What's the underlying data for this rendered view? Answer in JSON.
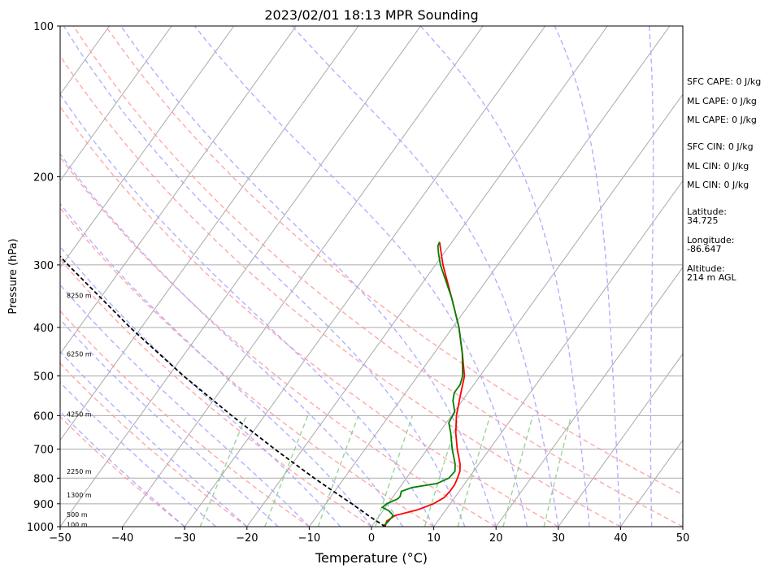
{
  "chart_data": {
    "type": "line",
    "title": "2023/02/01 18:13 MPR Sounding",
    "xlabel": "Temperature (°C)",
    "ylabel": "Pressure (hPa)",
    "xlim": [
      -50,
      50
    ],
    "ylim": [
      1000,
      100
    ],
    "y_scale": "log",
    "grid": true,
    "x_ticks": [
      -50,
      -40,
      -30,
      -20,
      -10,
      0,
      10,
      20,
      30,
      40,
      50
    ],
    "x_tick_labels": [
      "−50",
      "−40",
      "−30",
      "−20",
      "−10",
      "0",
      "10",
      "20",
      "30",
      "40",
      "50"
    ],
    "y_ticks": [
      1000,
      900,
      800,
      700,
      600,
      500,
      400,
      300,
      200,
      100
    ],
    "y_tick_labels": [
      "1000",
      "900",
      "800",
      "700",
      "600",
      "500",
      "400",
      "300",
      "200",
      "100"
    ],
    "series": [
      {
        "color": "#ff0000",
        "points": [
          [
            1000,
            2.2
          ],
          [
            975,
            1.8
          ],
          [
            950,
            2.5
          ],
          [
            925,
            5.5
          ],
          [
            900,
            7.3
          ],
          [
            875,
            8.3
          ],
          [
            850,
            8.5
          ],
          [
            825,
            8.5
          ],
          [
            800,
            8.2
          ],
          [
            775,
            7.8
          ],
          [
            750,
            7.0
          ],
          [
            700,
            4.8
          ],
          [
            650,
            2.7
          ],
          [
            600,
            0.8
          ],
          [
            550,
            -0.8
          ],
          [
            500,
            -2.5
          ],
          [
            450,
            -5.5
          ],
          [
            400,
            -9.0
          ],
          [
            350,
            -13.5
          ],
          [
            300,
            -18.8
          ],
          [
            270,
            -22.0
          ]
        ]
      },
      {
        "color": "#008000",
        "points": [
          [
            1000,
            1.8
          ],
          [
            975,
            2.1
          ],
          [
            950,
            2.2
          ],
          [
            930,
            1.0
          ],
          [
            915,
            -0.5
          ],
          [
            900,
            -0.2
          ],
          [
            880,
            1.0
          ],
          [
            870,
            1.1
          ],
          [
            850,
            0.7
          ],
          [
            835,
            2.0
          ],
          [
            820,
            5.5
          ],
          [
            800,
            6.8
          ],
          [
            775,
            7.0
          ],
          [
            750,
            6.2
          ],
          [
            700,
            4.0
          ],
          [
            650,
            1.9
          ],
          [
            620,
            0.4
          ],
          [
            590,
            0.1
          ],
          [
            560,
            -1.5
          ],
          [
            540,
            -2.2
          ],
          [
            520,
            -2.2
          ],
          [
            500,
            -2.8
          ],
          [
            450,
            -5.5
          ],
          [
            400,
            -9.0
          ],
          [
            350,
            -13.5
          ],
          [
            300,
            -19.2
          ],
          [
            285,
            -20.8
          ],
          [
            275,
            -21.8
          ],
          [
            270,
            -22.0
          ]
        ]
      },
      {
        "color": "#000000",
        "dashed": true,
        "points": [
          [
            1000,
            2.2
          ],
          [
            950,
            -1.8
          ],
          [
            900,
            -5.8
          ],
          [
            850,
            -10.2
          ],
          [
            800,
            -14.8
          ],
          [
            700,
            -24.5
          ],
          [
            600,
            -35.3
          ],
          [
            500,
            -47.6
          ],
          [
            400,
            -61.8
          ],
          [
            300,
            -79.0
          ],
          [
            270,
            -85.1
          ]
        ]
      }
    ],
    "height_labels": [
      {
        "p": 990,
        "text": "100 m"
      },
      {
        "p": 945,
        "text": "500 m"
      },
      {
        "p": 865,
        "text": "1300 m"
      },
      {
        "p": 776,
        "text": "2250 m"
      },
      {
        "p": 596,
        "text": "4250 m"
      },
      {
        "p": 452,
        "text": "6250 m"
      },
      {
        "p": 345,
        "text": "8250 m"
      }
    ],
    "background_lines": {
      "isotherms_gray_solid": [
        -130,
        -120,
        -110,
        -100,
        -90,
        -80,
        -70,
        -60,
        -50,
        -40,
        -30,
        -20,
        -10,
        0,
        10,
        20,
        30,
        40,
        50
      ],
      "dry_adiabats_red_dashed_theta_c": [
        -30,
        -20,
        -10,
        0,
        10,
        20,
        30,
        40,
        50,
        60
      ],
      "moist_adiabats_blue_dashed_t_at_1000": [
        -30,
        -25,
        -20,
        -15,
        -10,
        -5,
        0,
        5,
        10,
        15,
        20,
        25,
        30,
        35,
        40,
        45,
        50
      ],
      "mixing_ratio_green_dashed_g_per_kg": [
        0.4,
        1,
        2,
        4,
        7,
        10,
        16,
        24
      ],
      "colors": {
        "isotherm": "#aaaaaa",
        "dry": "#ff9999",
        "moist": "#a8a8ff",
        "mixing": "#88cc88"
      }
    }
  },
  "side_info": {
    "sfc_cape": "SFC CAPE: 0 J/kg",
    "ml_cape_1": "ML CAPE: 0 J/kg",
    "ml_cape_2": "ML CAPE: 0 J/kg",
    "sfc_cin": "SFC CIN: 0 J/kg",
    "ml_cin_1": "ML CIN: 0 J/kg",
    "ml_cin_2": "ML CIN: 0 J/kg",
    "latitude_label": "Latitude:",
    "latitude_value": "34.725",
    "longitude_label": "Longitude:",
    "longitude_value": "-86.647",
    "altitude_label": "Altitude:",
    "altitude_value": "214 m AGL"
  }
}
